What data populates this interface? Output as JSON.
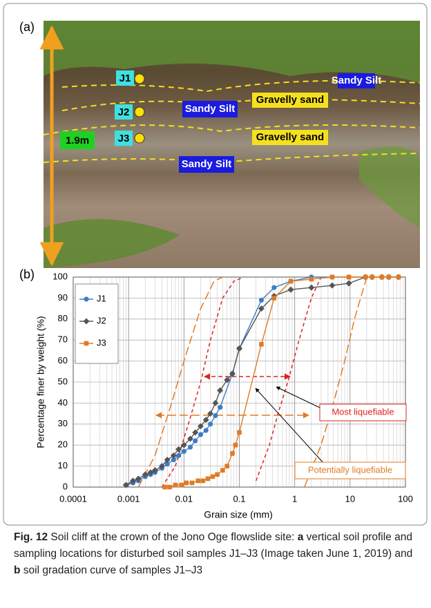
{
  "panel_a": {
    "label": "(a)",
    "samples": [
      "J1",
      "J2",
      "J3"
    ],
    "height": "1.9m",
    "layers": [
      "Sandy Silt",
      "Sandy Silt",
      "Sandy Silt",
      "Gravelly sand",
      "Gravelly sand"
    ]
  },
  "chart_data": {
    "type": "line",
    "panel_label": "(b)",
    "x_label": "Grain size (mm)",
    "y_label": "Percentage finer by weight  (%)",
    "xscale": "log",
    "grid": true,
    "legend": "upper left",
    "xlim": [
      0.0001,
      100
    ],
    "xticks": [
      0.0001,
      0.001,
      0.01,
      0.1,
      1,
      10,
      100
    ],
    "ylim": [
      0,
      100
    ],
    "yticks": [
      0,
      10,
      20,
      30,
      40,
      50,
      60,
      70,
      80,
      90,
      100
    ],
    "series": [
      {
        "name": "J1",
        "color": "#3b7dc8",
        "marker": "circle",
        "x": [
          0.0009,
          0.0012,
          0.0015,
          0.002,
          0.0025,
          0.003,
          0.004,
          0.005,
          0.0065,
          0.008,
          0.01,
          0.013,
          0.016,
          0.02,
          0.025,
          0.03,
          0.037,
          0.045,
          0.075,
          0.1,
          0.25,
          0.425,
          0.85,
          2,
          4.75,
          9.5,
          19
        ],
        "values": [
          1,
          2,
          3,
          5,
          6,
          7,
          9,
          11,
          13,
          15,
          17,
          19,
          22,
          25,
          27,
          30,
          34,
          38,
          54,
          66,
          89,
          95,
          98,
          100,
          100,
          100,
          100
        ]
      },
      {
        "name": "J2",
        "color": "#555555",
        "marker": "diamond",
        "x": [
          0.0009,
          0.0012,
          0.0015,
          0.002,
          0.0025,
          0.003,
          0.004,
          0.005,
          0.0065,
          0.008,
          0.01,
          0.013,
          0.016,
          0.02,
          0.025,
          0.03,
          0.037,
          0.045,
          0.06,
          0.075,
          0.1,
          0.25,
          0.425,
          0.85,
          2,
          4.75,
          9.5,
          19,
          25,
          37.5,
          50,
          75
        ],
        "values": [
          1,
          3,
          4,
          6,
          7,
          8,
          10,
          13,
          15,
          18,
          20,
          23,
          26,
          29,
          32,
          35,
          40,
          46,
          51,
          54,
          66,
          85,
          91,
          94,
          95,
          96,
          97,
          100,
          100,
          100,
          100,
          100
        ]
      },
      {
        "name": "J3",
        "color": "#e07b24",
        "marker": "square",
        "x": [
          0.0045,
          0.0055,
          0.007,
          0.009,
          0.011,
          0.014,
          0.018,
          0.022,
          0.027,
          0.033,
          0.04,
          0.05,
          0.06,
          0.075,
          0.085,
          0.1,
          0.25,
          0.425,
          0.85,
          2,
          4.75,
          9.5,
          19,
          25,
          37.5,
          50,
          75
        ],
        "values": [
          0,
          0,
          1,
          1,
          2,
          2,
          3,
          3,
          4,
          5,
          6,
          8,
          10,
          16,
          20,
          26,
          68,
          90,
          98,
          99,
          100,
          100,
          100,
          100,
          100,
          100,
          100
        ]
      }
    ],
    "boundaries": [
      {
        "label": "Most liquefiable",
        "color": "#e02020",
        "dash": "5 4",
        "curves": [
          {
            "x": [
              0.004,
              0.007,
              0.012,
              0.02,
              0.03,
              0.05,
              0.08,
              0.12
            ],
            "values": [
              0,
              10,
              30,
              50,
              70,
              90,
              98,
              100
            ]
          },
          {
            "x": [
              0.2,
              0.35,
              0.5,
              0.75,
              1.2,
              2,
              3
            ],
            "values": [
              3,
              20,
              35,
              50,
              70,
              90,
              100
            ]
          }
        ]
      },
      {
        "label": "Potentially liquefiable",
        "color": "#e07b24",
        "dash": "12 5",
        "curves": [
          {
            "x": [
              0.0015,
              0.003,
              0.006,
              0.01,
              0.02,
              0.035,
              0.05
            ],
            "values": [
              0,
              15,
              40,
              60,
              85,
              98,
              100
            ]
          },
          {
            "x": [
              1.5,
              3,
              5,
              8,
              12,
              20
            ],
            "values": [
              0,
              20,
              40,
              60,
              80,
              100
            ]
          }
        ]
      }
    ]
  },
  "caption": [
    "Fig. 12",
    "  Soil cliff at the crown of the Jono Oge flowslide site: ",
    "a",
    " vertical soil profile and sampling locations for disturbed soil samples J1–J3 (Image taken June 1, 2019) and ",
    "b",
    " soil gradation curve of samples J1–J3"
  ]
}
